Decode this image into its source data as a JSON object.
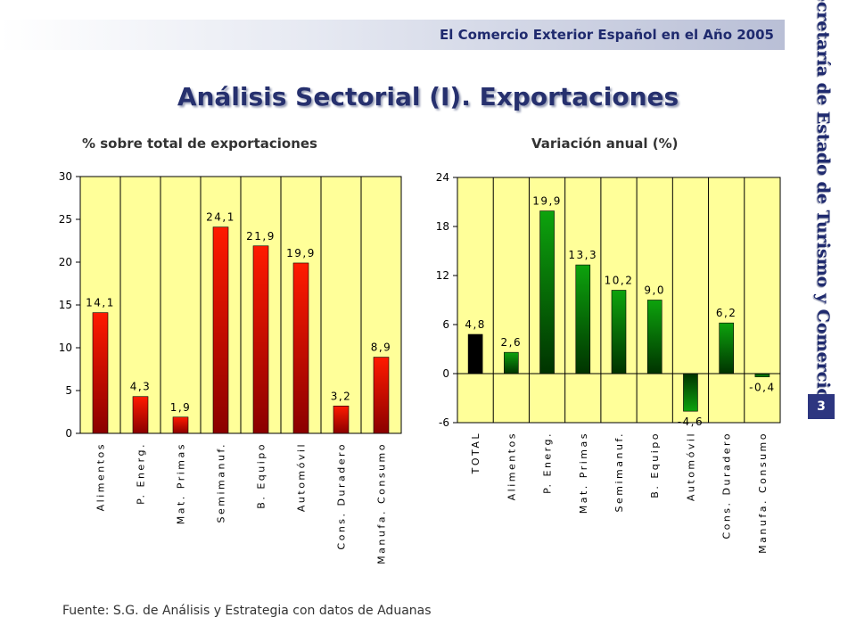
{
  "header": {
    "title": "El Comercio Exterior Español en el Año 2005"
  },
  "page": {
    "title": "Análisis Sectorial (I). Exportaciones",
    "side_text": "Secretaría de Estado de Turismo y Comercio",
    "page_number": "3",
    "footer": "Fuente: S.G. de Análisis y Estrategia con datos de Aduanas"
  },
  "colors": {
    "plot_bg": "#ffff99",
    "red_top": "#ff1a00",
    "red_bottom": "#8a0000",
    "green_top": "#0da30d",
    "green_bottom": "#003300",
    "total_bar": "#000000",
    "title_blue": "#26306e"
  },
  "chart_data": [
    {
      "type": "bar",
      "title": "% sobre total de exportaciones",
      "categories": [
        "Alimentos",
        "P. Energ.",
        "Mat. Primas",
        "Semimanuf.",
        "B. Equipo",
        "Automóvil",
        "Cons. Duradero",
        "Manufa. Consumo"
      ],
      "values": [
        14.1,
        4.3,
        1.9,
        24.1,
        21.9,
        19.9,
        3.2,
        8.9
      ],
      "value_labels": [
        "14,1",
        "4,3",
        "1,9",
        "24,1",
        "21,9",
        "19,9",
        "3,2",
        "8,9"
      ],
      "ylim": [
        0,
        30
      ],
      "yticks": [
        0,
        5,
        10,
        15,
        20,
        25,
        30
      ],
      "grid": "vertical separators",
      "xlabel": "",
      "ylabel": ""
    },
    {
      "type": "bar",
      "title": "Variación anual (%)",
      "categories": [
        "TOTAL",
        "Alimentos",
        "P. Energ.",
        "Mat. Primas",
        "Semimanuf.",
        "B. Equipo",
        "Automóvil",
        "Cons. Duradero",
        "Manufa. Consumo"
      ],
      "values": [
        4.8,
        2.6,
        19.9,
        13.3,
        10.2,
        9.0,
        -4.6,
        6.2,
        -0.4
      ],
      "value_labels": [
        "4,8",
        "2,6",
        "19,9",
        "13,3",
        "10,2",
        "9,0",
        "-4,6",
        "6,2",
        "-0,4"
      ],
      "ylim": [
        -6,
        24
      ],
      "yticks": [
        -6,
        0,
        6,
        12,
        18,
        24
      ],
      "grid": "vertical separators",
      "xlabel": "",
      "ylabel": ""
    }
  ]
}
